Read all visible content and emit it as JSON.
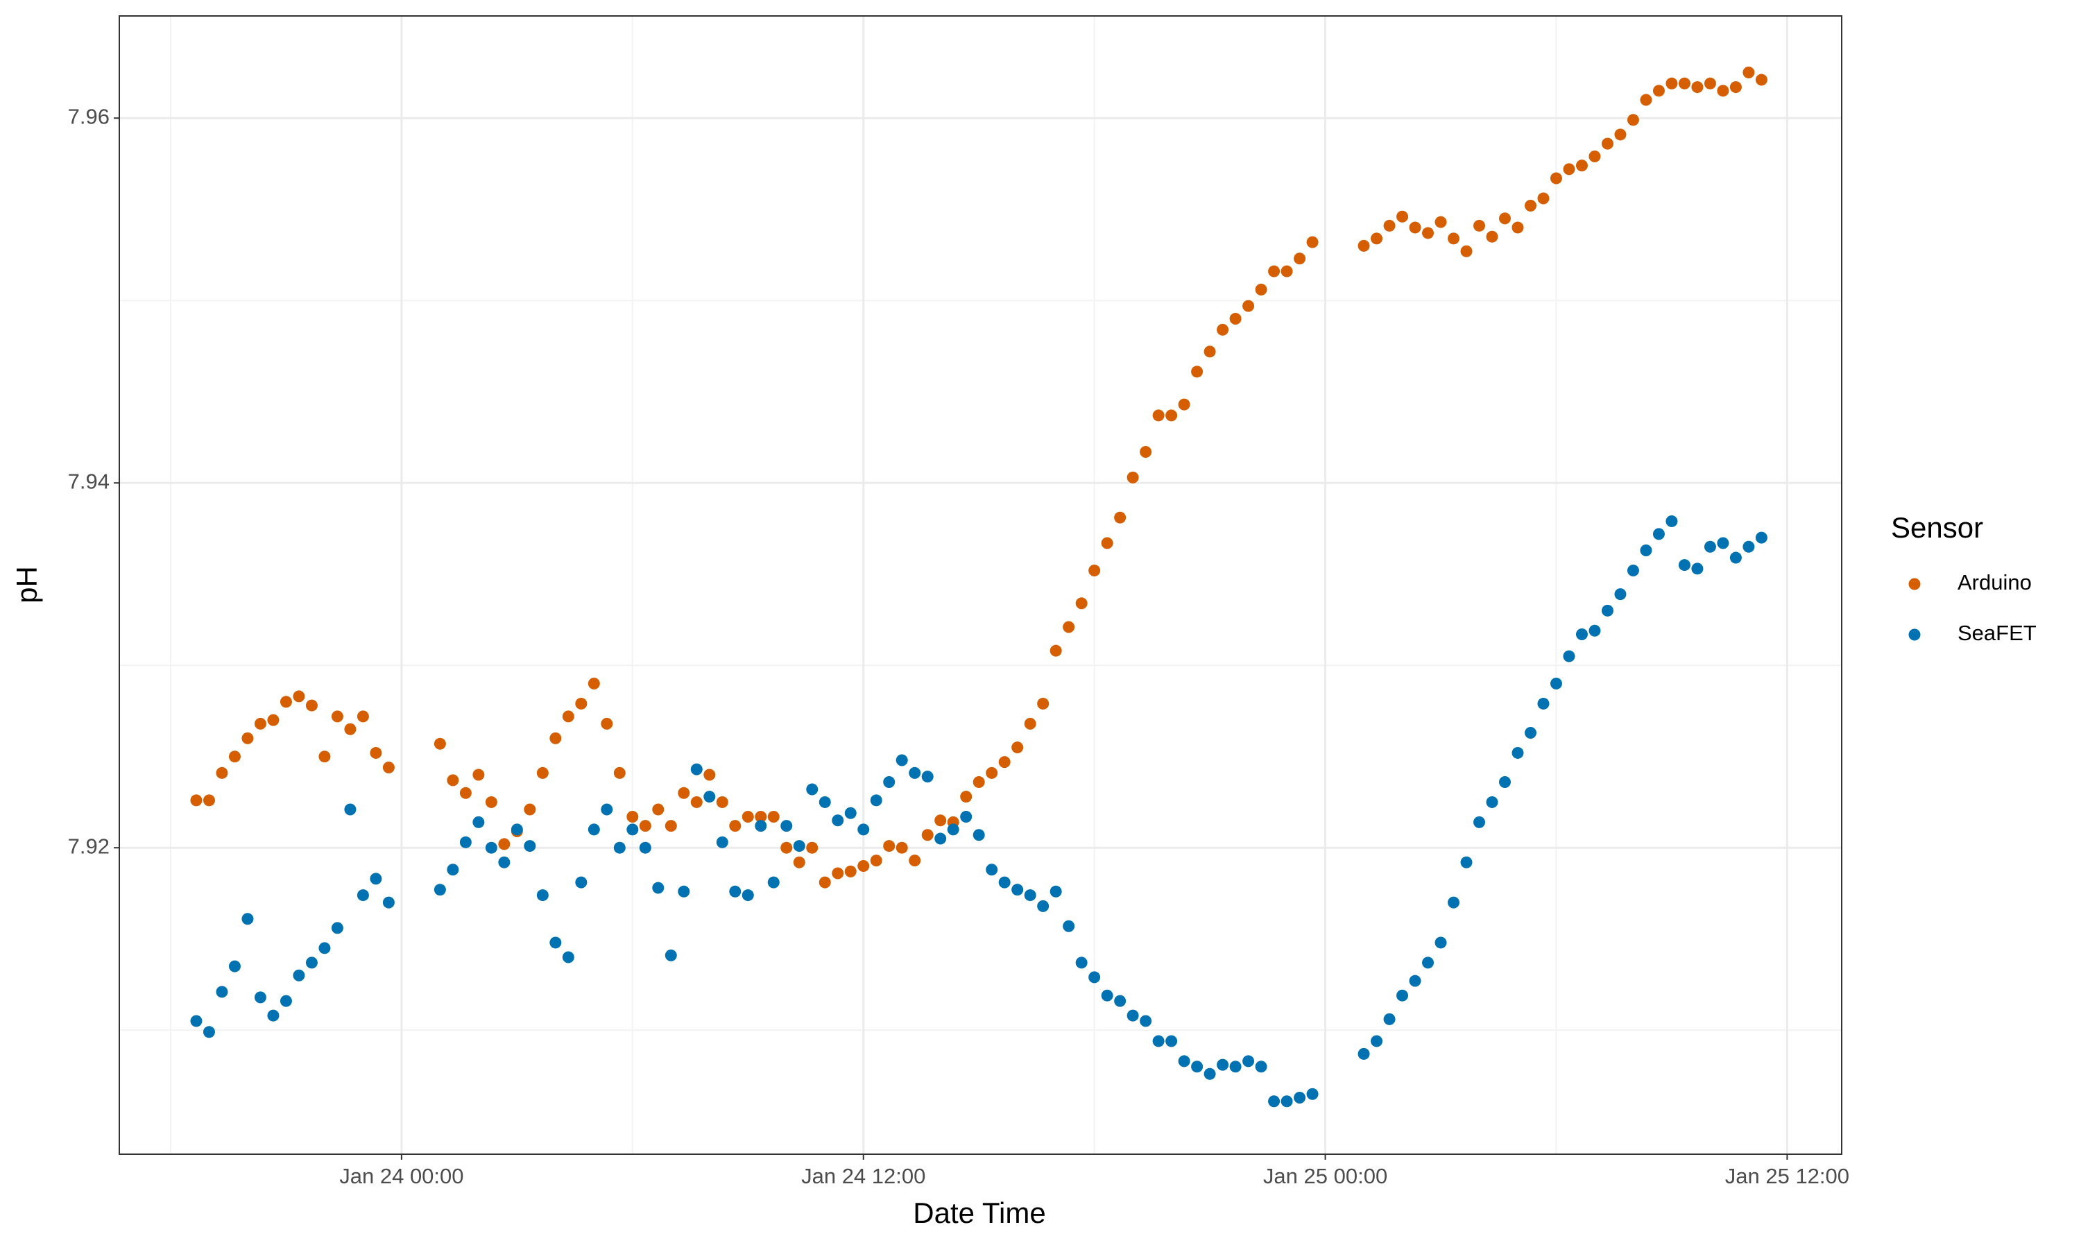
{
  "chart_data": {
    "type": "scatter",
    "x_label": "Date Time",
    "y_label": "pH",
    "legend_title": "Sensor",
    "legend": "right",
    "grid": true,
    "minor_grid": true,
    "xlim": [
      "Jan 23 16:40",
      "Jan 25 13:25"
    ],
    "xticks": [
      "Jan 24 00:00",
      "Jan 24 12:00",
      "Jan 25 00:00",
      "Jan 25 12:00"
    ],
    "ylim": [
      7.9032,
      7.9656
    ],
    "yticks": [
      7.92,
      7.94,
      7.96
    ],
    "x": [
      "Jan 23 18:40",
      "Jan 23 19:00",
      "Jan 23 19:20",
      "Jan 23 19:40",
      "Jan 23 20:00",
      "Jan 23 20:20",
      "Jan 23 20:40",
      "Jan 23 21:00",
      "Jan 23 21:20",
      "Jan 23 21:40",
      "Jan 23 22:00",
      "Jan 23 22:20",
      "Jan 23 22:40",
      "Jan 23 23:00",
      "Jan 23 23:20",
      "Jan 23 23:40",
      "Jan 24 00:00",
      "Jan 24 00:20",
      "Jan 24 00:40",
      "Jan 24 01:00",
      "Jan 24 01:20",
      "Jan 24 01:40",
      "Jan 24 02:00",
      "Jan 24 02:20",
      "Jan 24 02:40",
      "Jan 24 03:00",
      "Jan 24 03:20",
      "Jan 24 03:40",
      "Jan 24 04:00",
      "Jan 24 04:20",
      "Jan 24 04:40",
      "Jan 24 05:00",
      "Jan 24 05:20",
      "Jan 24 05:40",
      "Jan 24 06:00",
      "Jan 24 06:20",
      "Jan 24 06:40",
      "Jan 24 07:00",
      "Jan 24 07:20",
      "Jan 24 07:40",
      "Jan 24 08:00",
      "Jan 24 08:20",
      "Jan 24 08:40",
      "Jan 24 09:00",
      "Jan 24 09:20",
      "Jan 24 09:40",
      "Jan 24 10:00",
      "Jan 24 10:20",
      "Jan 24 10:40",
      "Jan 24 11:00",
      "Jan 24 11:20",
      "Jan 24 11:40",
      "Jan 24 12:00",
      "Jan 24 12:20",
      "Jan 24 12:40",
      "Jan 24 13:00",
      "Jan 24 13:20",
      "Jan 24 13:40",
      "Jan 24 14:00",
      "Jan 24 14:20",
      "Jan 24 14:40",
      "Jan 24 15:00",
      "Jan 24 15:20",
      "Jan 24 15:40",
      "Jan 24 16:00",
      "Jan 24 16:20",
      "Jan 24 16:40",
      "Jan 24 17:00",
      "Jan 24 17:20",
      "Jan 24 17:40",
      "Jan 24 18:00",
      "Jan 24 18:20",
      "Jan 24 18:40",
      "Jan 24 19:00",
      "Jan 24 19:20",
      "Jan 24 19:40",
      "Jan 24 20:00",
      "Jan 24 20:20",
      "Jan 24 20:40",
      "Jan 24 21:00",
      "Jan 24 21:20",
      "Jan 24 21:40",
      "Jan 24 22:00",
      "Jan 24 22:20",
      "Jan 24 22:40",
      "Jan 24 23:00",
      "Jan 24 23:20",
      "Jan 24 23:40",
      "Jan 25 00:00",
      "Jan 25 00:20",
      "Jan 25 00:40",
      "Jan 25 01:00",
      "Jan 25 01:20",
      "Jan 25 01:40",
      "Jan 25 02:00",
      "Jan 25 02:20",
      "Jan 25 02:40",
      "Jan 25 03:00",
      "Jan 25 03:20",
      "Jan 25 03:40",
      "Jan 25 04:00",
      "Jan 25 04:20",
      "Jan 25 04:40",
      "Jan 25 05:00",
      "Jan 25 05:20",
      "Jan 25 05:40",
      "Jan 25 06:00",
      "Jan 25 06:20",
      "Jan 25 06:40",
      "Jan 25 07:00",
      "Jan 25 07:20",
      "Jan 25 07:40",
      "Jan 25 08:00",
      "Jan 25 08:20",
      "Jan 25 08:40",
      "Jan 25 09:00",
      "Jan 25 09:20",
      "Jan 25 09:40",
      "Jan 25 10:00",
      "Jan 25 10:20",
      "Jan 25 10:40",
      "Jan 25 11:00",
      "Jan 25 11:20"
    ],
    "series": [
      {
        "name": "Arduino",
        "color": "#d55e00",
        "values": [
          7.9226,
          7.9226,
          7.9241,
          7.925,
          7.926,
          7.9268,
          7.927,
          7.928,
          7.9283,
          7.9278,
          7.925,
          7.9272,
          7.9265,
          7.9272,
          7.9252,
          7.9244,
          null,
          null,
          null,
          7.9257,
          7.9237,
          7.923,
          7.924,
          7.9225,
          7.9202,
          7.9209,
          7.9221,
          7.9241,
          7.926,
          7.9272,
          7.9279,
          7.929,
          7.9268,
          7.9241,
          7.9217,
          7.9212,
          7.9221,
          7.9212,
          7.923,
          7.9225,
          7.924,
          7.9225,
          7.9212,
          7.9217,
          7.9217,
          7.9217,
          7.92,
          7.9192,
          7.92,
          7.9181,
          7.9186,
          7.9187,
          7.919,
          7.9193,
          7.9201,
          7.92,
          7.9193,
          7.9207,
          7.9215,
          7.9214,
          7.9228,
          7.9236,
          7.9241,
          7.9247,
          7.9255,
          7.9268,
          7.9279,
          7.9308,
          7.9321,
          7.9334,
          7.9352,
          7.9367,
          7.9381,
          7.9403,
          7.9417,
          7.9437,
          7.9437,
          7.9443,
          7.9461,
          7.9472,
          7.9484,
          7.949,
          7.9497,
          7.9506,
          7.9516,
          7.9516,
          7.9523,
          7.9532,
          null,
          null,
          null,
          7.953,
          7.9534,
          7.9541,
          7.9546,
          7.954,
          7.9537,
          7.9543,
          7.9534,
          7.9527,
          7.9541,
          7.9535,
          7.9545,
          7.954,
          7.9552,
          7.9556,
          7.9567,
          7.9572,
          7.9574,
          7.9579,
          7.9586,
          7.9591,
          7.9599,
          7.961,
          7.9615,
          7.9619,
          7.9619,
          7.9617,
          7.9619,
          7.9615,
          7.9617,
          7.9625,
          7.9621
        ]
      },
      {
        "name": "SeaFET",
        "color": "#0072b2",
        "values": [
          7.9105,
          7.9099,
          7.9121,
          7.9135,
          7.9161,
          7.9118,
          7.9108,
          7.9116,
          7.913,
          7.9137,
          7.9145,
          7.9156,
          7.9221,
          7.9174,
          7.9183,
          7.917,
          null,
          null,
          null,
          7.9177,
          7.9188,
          7.9203,
          7.9214,
          7.92,
          7.9192,
          7.921,
          7.9201,
          7.9174,
          7.9148,
          7.914,
          7.9181,
          7.921,
          7.9221,
          7.92,
          7.921,
          7.92,
          7.9178,
          7.9141,
          7.9176,
          7.9243,
          7.9228,
          7.9203,
          7.9176,
          7.9174,
          7.9212,
          7.9181,
          7.9212,
          7.9201,
          7.9232,
          7.9225,
          7.9215,
          7.9219,
          7.921,
          7.9226,
          7.9236,
          7.9248,
          7.9241,
          7.9239,
          7.9205,
          7.921,
          7.9217,
          7.9207,
          7.9188,
          7.9181,
          7.9177,
          7.9174,
          7.9168,
          7.9176,
          7.9157,
          7.9137,
          7.9129,
          7.9119,
          7.9116,
          7.9108,
          7.9105,
          7.9094,
          7.9094,
          7.9083,
          7.908,
          7.9076,
          7.9081,
          7.908,
          7.9083,
          7.908,
          7.9061,
          7.9061,
          7.9063,
          7.9065,
          null,
          null,
          null,
          7.9087,
          7.9094,
          7.9106,
          7.9119,
          7.9127,
          7.9137,
          7.9148,
          7.917,
          7.9192,
          7.9214,
          7.9225,
          7.9236,
          7.9252,
          7.9263,
          7.9279,
          7.929,
          7.9305,
          7.9317,
          7.9319,
          7.933,
          7.9339,
          7.9352,
          7.9363,
          7.9372,
          7.9379,
          7.9355,
          7.9353,
          7.9365,
          7.9367,
          7.9359,
          7.9365,
          7.937
        ]
      }
    ]
  }
}
